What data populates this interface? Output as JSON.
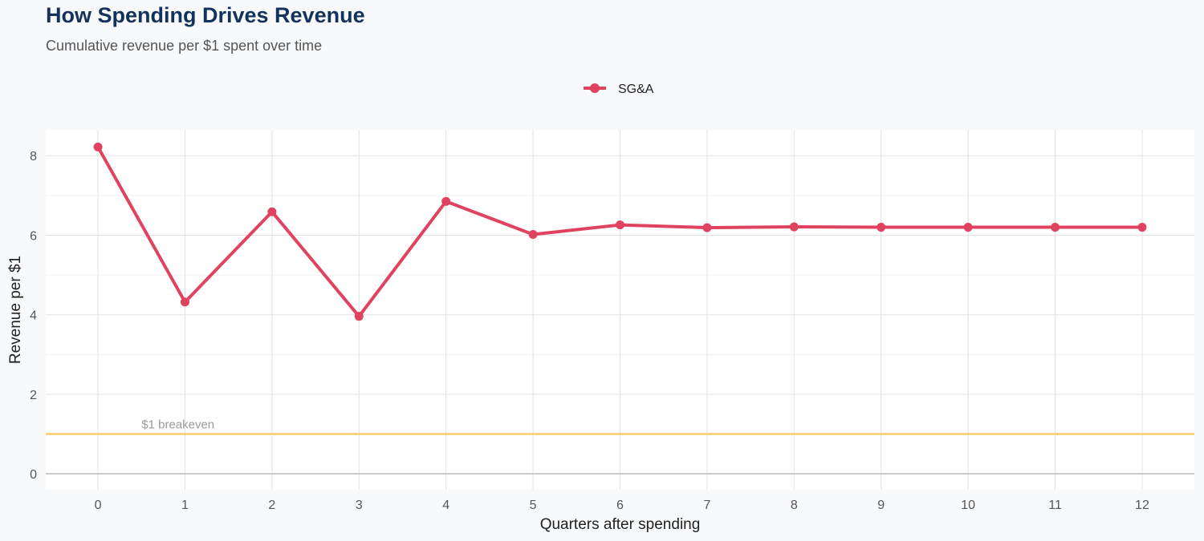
{
  "chart_data": {
    "type": "line",
    "title": "How Spending Drives Revenue",
    "subtitle": "Cumulative revenue per $1 spent over time",
    "xlabel": "Quarters after spending",
    "ylabel": "Revenue per $1",
    "x": [
      0,
      1,
      2,
      3,
      4,
      5,
      6,
      7,
      8,
      9,
      10,
      11,
      12
    ],
    "series": [
      {
        "name": "SG&A",
        "color": "#e0435f",
        "values": [
          8.22,
          4.32,
          6.59,
          3.96,
          6.85,
          6.02,
          6.26,
          6.19,
          6.21,
          6.2,
          6.2,
          6.2,
          6.2
        ]
      }
    ],
    "xlim": [
      -0.6,
      12.6
    ],
    "ylim": [
      -0.4,
      8.65
    ],
    "yticks": [
      0,
      2,
      4,
      6,
      8
    ],
    "xticks": [
      0,
      1,
      2,
      3,
      4,
      5,
      6,
      7,
      8,
      9,
      10,
      11,
      12
    ],
    "reference_line": {
      "y": 1,
      "label": "$1 breakeven",
      "color": "#f5cd6e"
    },
    "legend_position": "top",
    "grid": true
  }
}
